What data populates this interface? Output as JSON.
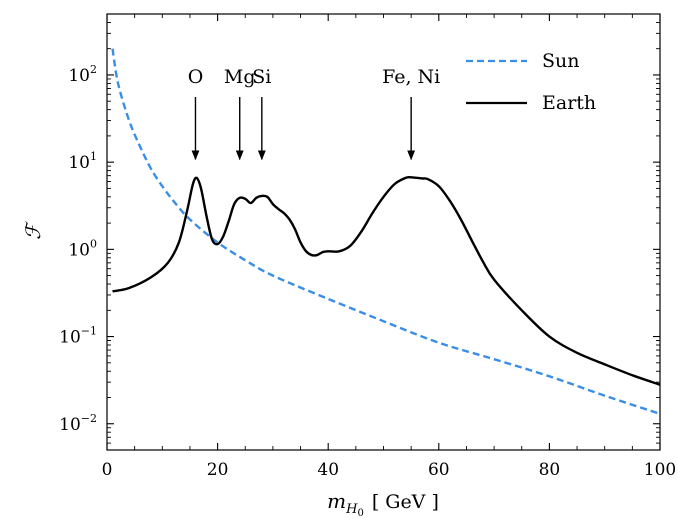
{
  "chart_data": {
    "type": "line",
    "xlabel_main": "m",
    "xlabel_sub": "H",
    "xlabel_subsub": "0",
    "xlabel_unit": "[ GeV ]",
    "ylabel": "ℱ",
    "xlim": [
      0,
      100
    ],
    "ylim": [
      0.005,
      500
    ],
    "yscale": "log",
    "x_ticks": [
      "0",
      "20",
      "40",
      "60",
      "80",
      "100"
    ],
    "y_ticks": [
      {
        "base": "10",
        "exp": "−2",
        "value": 0.01
      },
      {
        "base": "10",
        "exp": "−1",
        "value": 0.1
      },
      {
        "base": "10",
        "exp": "0",
        "value": 1
      },
      {
        "base": "10",
        "exp": "1",
        "value": 10
      },
      {
        "base": "10",
        "exp": "2",
        "value": 100
      }
    ],
    "legend_position": "top-right",
    "series": [
      {
        "name": "Sun",
        "style": "dashed",
        "color": "#3a8ee6",
        "x": [
          1,
          2,
          4,
          6,
          8,
          10,
          12,
          15,
          20,
          25,
          30,
          40,
          50,
          60,
          70,
          80,
          90,
          100
        ],
        "y": [
          200,
          80,
          30,
          15,
          8.3,
          5.3,
          3.6,
          2.2,
          1.2,
          0.75,
          0.5,
          0.27,
          0.15,
          0.085,
          0.055,
          0.035,
          0.021,
          0.013
        ]
      },
      {
        "name": "Earth",
        "style": "solid",
        "color": "#000000",
        "x": [
          1,
          4,
          8,
          11,
          13,
          14.5,
          15.5,
          16.2,
          17,
          18,
          19,
          20,
          21,
          22,
          23,
          24,
          25,
          26,
          27,
          28,
          29,
          30,
          31,
          32,
          33,
          34,
          35,
          36,
          37,
          38,
          39,
          40,
          42,
          44,
          46,
          48,
          50,
          52,
          54,
          55,
          57,
          58,
          60,
          62,
          64,
          66,
          68,
          70,
          75,
          80,
          85,
          90,
          95,
          100
        ],
        "y": [
          0.33,
          0.36,
          0.48,
          0.7,
          1.2,
          2.8,
          5.5,
          6.6,
          5.0,
          2.4,
          1.3,
          1.15,
          1.4,
          2.1,
          3.3,
          3.9,
          3.8,
          3.4,
          3.9,
          4.1,
          4.0,
          3.3,
          2.9,
          2.6,
          2.2,
          1.7,
          1.2,
          0.95,
          0.86,
          0.86,
          0.93,
          0.95,
          0.95,
          1.1,
          1.6,
          2.6,
          4.0,
          5.6,
          6.6,
          6.7,
          6.5,
          6.4,
          5.3,
          3.6,
          2.2,
          1.25,
          0.72,
          0.45,
          0.2,
          0.1,
          0.065,
          0.048,
          0.036,
          0.028
        ]
      }
    ],
    "annotations": [
      {
        "label": "O",
        "x": 16,
        "y_tip": 8.5
      },
      {
        "label": "Mg",
        "x": 24,
        "y_tip": 8.5
      },
      {
        "label": "Si",
        "x": 28,
        "y_tip": 8.5
      },
      {
        "label": "Fe, Ni",
        "x": 55,
        "y_tip": 8.5
      }
    ]
  }
}
